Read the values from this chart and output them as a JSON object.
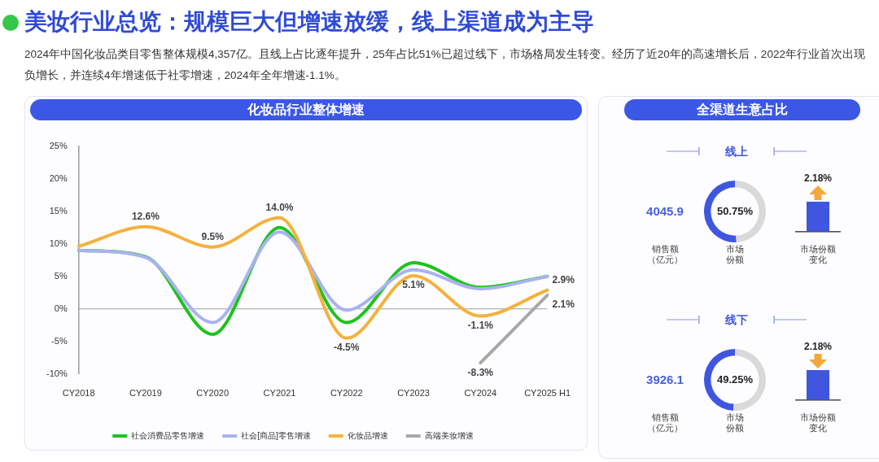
{
  "chart_data": [
    {
      "type": "other",
      "title": "美妆行业总览：规模巨大但增速放缓，线上渠道成为主导",
      "subtitle": "2024年中国化妆品类目零售整体规模4,357亿。且线上占比逐年提升，25年占比51%已超过线下，市场格局发生转变。经历了近20年的高速增长后，2022年行业首次出现负增长，并连续4年增速低于社零增速，2024年全年增速-1.1%。"
    },
    {
      "type": "line",
      "title": "化妆品行业整体增速",
      "categories": [
        "CY2018",
        "CY2019",
        "CY2020",
        "CY2021",
        "CY2022",
        "CY2023",
        "CY2024",
        "CY2025 H1"
      ],
      "series": [
        {
          "name": "社会消费品零售增速",
          "color": "#1ec31e",
          "values": [
            9.0,
            8.0,
            -3.9,
            12.5,
            -2.1,
            7.1,
            3.3,
            5.0
          ]
        },
        {
          "name": "社会[商品]零售增速",
          "color": "#aab2f0",
          "values": [
            9.0,
            7.9,
            -2.1,
            11.8,
            -0.2,
            6.0,
            3.1,
            5.0
          ]
        },
        {
          "name": "化妆品增速",
          "color": "#f5b13d",
          "values": [
            9.6,
            12.6,
            9.5,
            14.0,
            -4.5,
            5.1,
            -1.1,
            2.9
          ],
          "value_labels": [
            null,
            "12.6%",
            "9.5%",
            "14.0%",
            "-4.5%",
            "5.1%",
            "-1.1%",
            "2.9%"
          ]
        },
        {
          "name": "高端美妆增速",
          "color": "#a8a8a8",
          "values": [
            null,
            null,
            null,
            null,
            null,
            null,
            -8.3,
            2.1
          ],
          "value_labels": [
            null,
            null,
            null,
            null,
            null,
            null,
            "-8.3%",
            "2.1%"
          ]
        }
      ],
      "ylim": [
        -10,
        25
      ],
      "yticks": [
        {
          "value": -10,
          "label": "-10%"
        },
        {
          "value": -5,
          "label": "-5%"
        },
        {
          "value": 0,
          "label": "0%"
        },
        {
          "value": 5,
          "label": "5%"
        },
        {
          "value": 10,
          "label": "10%"
        },
        {
          "value": 15,
          "label": "15%"
        },
        {
          "value": 20,
          "label": "20%"
        },
        {
          "value": 25,
          "label": "25%"
        }
      ],
      "legend": "bottom",
      "marker": "none",
      "ref_lines": [
        {
          "axis": "y",
          "value": 0,
          "color": "#9e9e9e"
        }
      ]
    },
    {
      "type": "donut",
      "title": "全渠道生意占比",
      "subtitle": "线上",
      "categories": [
        null,
        null
      ],
      "values": [
        50.75,
        49.25
      ],
      "colors": [
        "#3f56e0",
        "#d9d9d9"
      ],
      "value_labels": [
        "50.75%",
        null
      ],
      "annotations": [
        "4045.9",
        "销售额（亿元）",
        "市场份额",
        "2.18%",
        "市场份额变化"
      ]
    },
    {
      "type": "donut",
      "subtitle": "线下",
      "categories": [
        null,
        null
      ],
      "values": [
        49.25,
        50.75
      ],
      "colors": [
        "#3f56e0",
        "#d9d9d9"
      ],
      "value_labels": [
        "49.25%",
        null
      ],
      "annotations": [
        "3926.1",
        "销售额（亿元）",
        "市场份额",
        "2.18%",
        "市场份额变化"
      ]
    }
  ]
}
